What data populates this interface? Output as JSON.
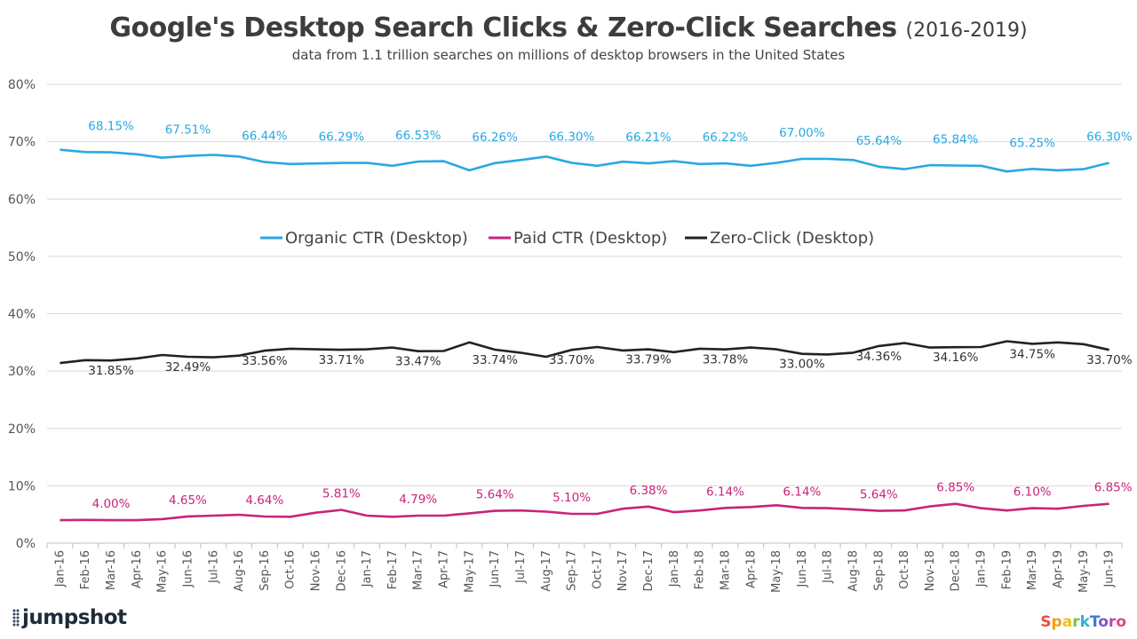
{
  "chart_data": {
    "type": "line",
    "title": "Google's Desktop Search Clicks & Zero-Click Searches",
    "title_suffix": "(2016-2019)",
    "subtitle": "data from 1.1 trillion searches on millions of desktop browsers in the United States",
    "ylim": [
      0,
      80
    ],
    "yticks": [
      "0%",
      "10%",
      "20%",
      "30%",
      "40%",
      "50%",
      "60%",
      "70%",
      "80%"
    ],
    "grid": "horizontal",
    "legend_position": "center",
    "categories": [
      "Jan-16",
      "Feb-16",
      "Mar-16",
      "Apr-16",
      "May-16",
      "Jun-16",
      "Jul-16",
      "Aug-16",
      "Sep-16",
      "Oct-16",
      "Nov-16",
      "Dec-16",
      "Jan-17",
      "Feb-17",
      "Mar-17",
      "Apr-17",
      "May-17",
      "Jun-17",
      "Jul-17",
      "Aug-17",
      "Sep-17",
      "Oct-17",
      "Nov-17",
      "Dec-17",
      "Jan-18",
      "Feb-18",
      "Mar-18",
      "Apr-18",
      "May-18",
      "Jun-18",
      "Jul-18",
      "Aug-18",
      "Sep-18",
      "Oct-18",
      "Nov-18",
      "Dec-18",
      "Jan-19",
      "Feb-19",
      "Mar-19",
      "Apr-19",
      "May-19",
      "Jun-19"
    ],
    "series": [
      {
        "name": "Organic CTR (Desktop)",
        "color": "#29a8e0",
        "values": [
          68.6,
          68.2,
          68.15,
          67.8,
          67.2,
          67.51,
          67.7,
          67.4,
          66.44,
          66.1,
          66.2,
          66.29,
          66.3,
          65.8,
          66.53,
          66.6,
          65.0,
          66.26,
          66.8,
          67.4,
          66.3,
          65.8,
          66.5,
          66.21,
          66.6,
          66.1,
          66.22,
          65.8,
          66.3,
          67.0,
          67.0,
          66.8,
          65.64,
          65.2,
          65.9,
          65.84,
          65.8,
          64.8,
          65.25,
          65.0,
          65.2,
          66.3
        ],
        "labels": [
          {
            "i": 2,
            "text": "68.15%"
          },
          {
            "i": 5,
            "text": "67.51%"
          },
          {
            "i": 8,
            "text": "66.44%"
          },
          {
            "i": 11,
            "text": "66.29%"
          },
          {
            "i": 14,
            "text": "66.53%"
          },
          {
            "i": 17,
            "text": "66.26%"
          },
          {
            "i": 20,
            "text": "66.30%"
          },
          {
            "i": 23,
            "text": "66.21%"
          },
          {
            "i": 26,
            "text": "66.22%"
          },
          {
            "i": 29,
            "text": "67.00%"
          },
          {
            "i": 32,
            "text": "65.64%"
          },
          {
            "i": 35,
            "text": "65.84%"
          },
          {
            "i": 38,
            "text": "65.25%"
          },
          {
            "i": 41,
            "text": "66.30%"
          }
        ]
      },
      {
        "name": "Paid CTR (Desktop)",
        "color": "#c8247a",
        "values": [
          4.0,
          4.05,
          4.0,
          4.0,
          4.2,
          4.65,
          4.8,
          4.95,
          4.64,
          4.6,
          5.3,
          5.81,
          4.8,
          4.6,
          4.79,
          4.8,
          5.2,
          5.64,
          5.7,
          5.5,
          5.1,
          5.1,
          6.0,
          6.38,
          5.4,
          5.7,
          6.14,
          6.3,
          6.6,
          6.14,
          6.1,
          5.9,
          5.64,
          5.7,
          6.4,
          6.85,
          6.1,
          5.7,
          6.1,
          6.0,
          6.5,
          6.85
        ],
        "labels": [
          {
            "i": 2,
            "text": "4.00%"
          },
          {
            "i": 5,
            "text": "4.65%"
          },
          {
            "i": 8,
            "text": "4.64%"
          },
          {
            "i": 11,
            "text": "5.81%"
          },
          {
            "i": 14,
            "text": "4.79%"
          },
          {
            "i": 17,
            "text": "5.64%"
          },
          {
            "i": 20,
            "text": "5.10%"
          },
          {
            "i": 23,
            "text": "6.38%"
          },
          {
            "i": 26,
            "text": "6.14%"
          },
          {
            "i": 29,
            "text": "6.14%"
          },
          {
            "i": 32,
            "text": "5.64%"
          },
          {
            "i": 35,
            "text": "6.85%"
          },
          {
            "i": 38,
            "text": "6.10%"
          },
          {
            "i": 41,
            "text": "6.85%"
          }
        ]
      },
      {
        "name": "Zero-Click (Desktop)",
        "color": "#222222",
        "values": [
          31.4,
          31.9,
          31.85,
          32.2,
          32.8,
          32.49,
          32.4,
          32.7,
          33.56,
          33.9,
          33.8,
          33.71,
          33.8,
          34.1,
          33.47,
          33.5,
          35.0,
          33.74,
          33.2,
          32.5,
          33.7,
          34.2,
          33.6,
          33.79,
          33.3,
          33.9,
          33.78,
          34.1,
          33.8,
          33.0,
          32.9,
          33.2,
          34.36,
          34.9,
          34.1,
          34.16,
          34.2,
          35.2,
          34.75,
          35.0,
          34.7,
          33.7
        ],
        "labels": [
          {
            "i": 2,
            "text": "31.85%"
          },
          {
            "i": 5,
            "text": "32.49%"
          },
          {
            "i": 8,
            "text": "33.56%"
          },
          {
            "i": 11,
            "text": "33.71%"
          },
          {
            "i": 14,
            "text": "33.47%"
          },
          {
            "i": 17,
            "text": "33.74%"
          },
          {
            "i": 20,
            "text": "33.70%"
          },
          {
            "i": 23,
            "text": "33.79%"
          },
          {
            "i": 26,
            "text": "33.78%"
          },
          {
            "i": 29,
            "text": "33.00%"
          },
          {
            "i": 32,
            "text": "34.36%"
          },
          {
            "i": 35,
            "text": "34.16%"
          },
          {
            "i": 38,
            "text": "34.75%"
          },
          {
            "i": 41,
            "text": "33.70%"
          }
        ]
      }
    ]
  },
  "logos": {
    "left": "jumpshot",
    "right": "SparkToro"
  }
}
